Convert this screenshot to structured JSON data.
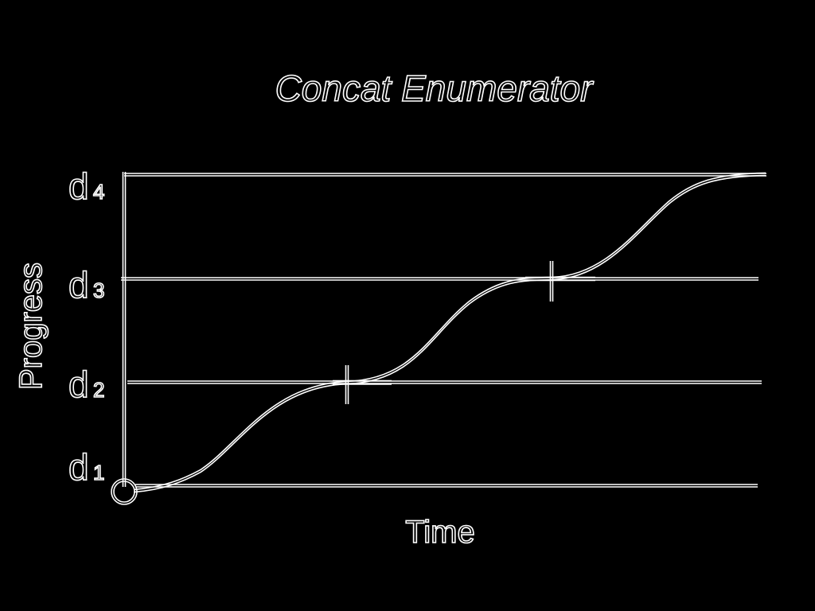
{
  "title": "Concat Enumerator",
  "x_axis_label": "Time",
  "y_axis_label": "Progress",
  "levels": [
    {
      "letter": "d",
      "sub": "1"
    },
    {
      "letter": "d",
      "sub": "2"
    },
    {
      "letter": "d",
      "sub": "3"
    },
    {
      "letter": "d",
      "sub": "4"
    }
  ],
  "colors": {
    "background": "#000000",
    "stroke": "#ffffff"
  },
  "start_marker": "open-circle",
  "boundary_markers": [
    "cross-at-d2",
    "cross-at-d3"
  ]
}
